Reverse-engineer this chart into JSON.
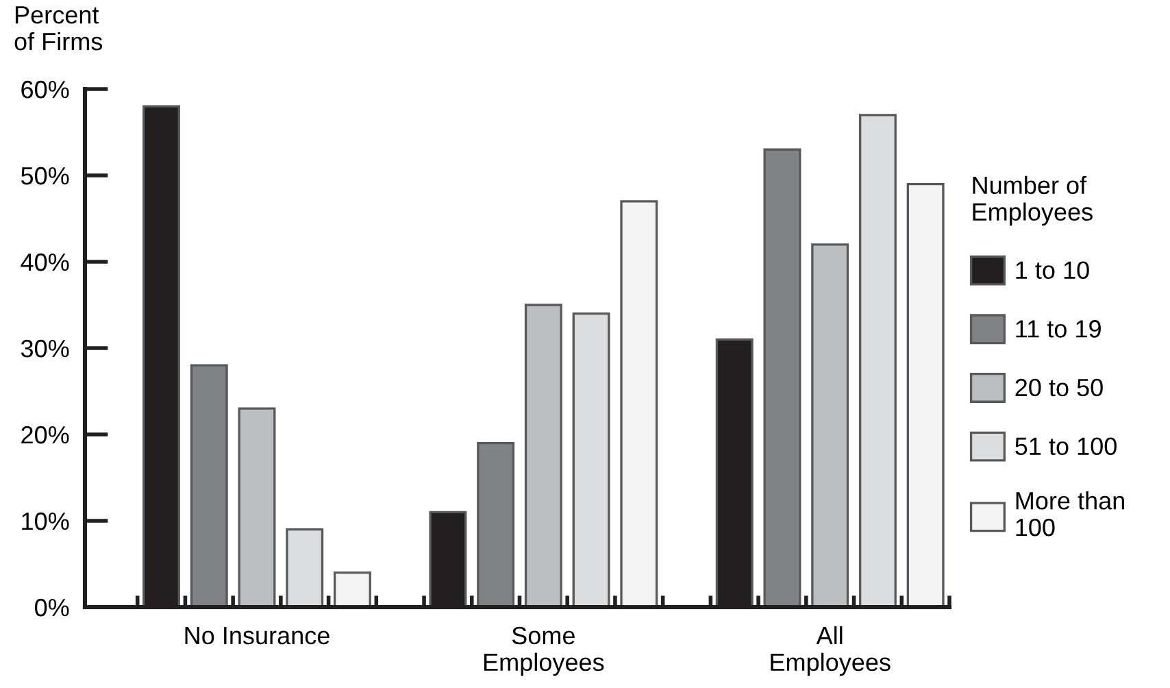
{
  "chart_data": {
    "type": "bar",
    "ylabel": "Percent\nof Firms",
    "categories": [
      "No Insurance",
      "Some\nEmployees",
      "All\nEmployees"
    ],
    "series": [
      {
        "name": "1 to 10",
        "color": "#231f20",
        "values": [
          58,
          11,
          31
        ]
      },
      {
        "name": "11 to 19",
        "color": "#808285",
        "values": [
          28,
          19,
          53
        ]
      },
      {
        "name": "20 to 50",
        "color": "#bcbec0",
        "values": [
          23,
          35,
          42
        ]
      },
      {
        "name": "51 to 100",
        "color": "#dcdddf",
        "values": [
          9,
          34,
          57
        ]
      },
      {
        "name": "More than\n100",
        "color": "#f4f4f4",
        "values": [
          4,
          47,
          49
        ]
      }
    ],
    "legend_title": "Number of\nEmployees",
    "legend": "right",
    "ylim": [
      0,
      60
    ],
    "yticks": [
      {
        "value": 0,
        "label": "0%"
      },
      {
        "value": 10,
        "label": "10%"
      },
      {
        "value": 20,
        "label": "20%"
      },
      {
        "value": 30,
        "label": "30%"
      },
      {
        "value": 40,
        "label": "40%"
      },
      {
        "value": 50,
        "label": "50%"
      },
      {
        "value": 60,
        "label": "60%"
      }
    ]
  }
}
